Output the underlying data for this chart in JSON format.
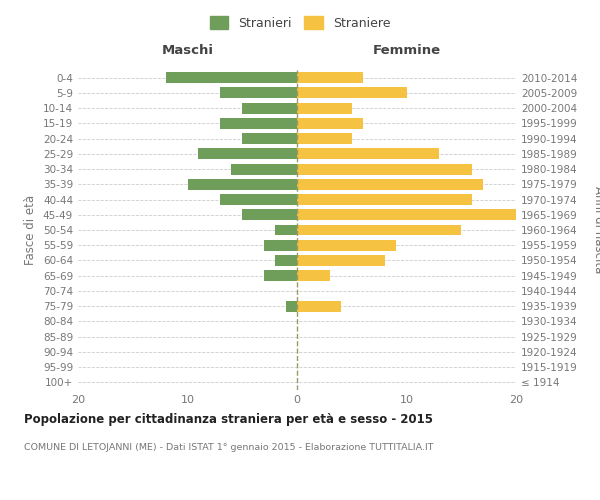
{
  "age_groups": [
    "100+",
    "95-99",
    "90-94",
    "85-89",
    "80-84",
    "75-79",
    "70-74",
    "65-69",
    "60-64",
    "55-59",
    "50-54",
    "45-49",
    "40-44",
    "35-39",
    "30-34",
    "25-29",
    "20-24",
    "15-19",
    "10-14",
    "5-9",
    "0-4"
  ],
  "birth_years": [
    "≤ 1914",
    "1915-1919",
    "1920-1924",
    "1925-1929",
    "1930-1934",
    "1935-1939",
    "1940-1944",
    "1945-1949",
    "1950-1954",
    "1955-1959",
    "1960-1964",
    "1965-1969",
    "1970-1974",
    "1975-1979",
    "1980-1984",
    "1985-1989",
    "1990-1994",
    "1995-1999",
    "2000-2004",
    "2005-2009",
    "2010-2014"
  ],
  "maschi": [
    0,
    0,
    0,
    0,
    0,
    1,
    0,
    3,
    2,
    3,
    2,
    5,
    7,
    10,
    6,
    9,
    5,
    7,
    5,
    7,
    12
  ],
  "femmine": [
    0,
    0,
    0,
    0,
    0,
    4,
    0,
    3,
    8,
    9,
    15,
    20,
    16,
    17,
    16,
    13,
    5,
    6,
    5,
    10,
    6
  ],
  "color_maschi": "#6f9e5b",
  "color_femmine": "#f5c242",
  "bar_height": 0.72,
  "xlim": 20,
  "title": "Popolazione per cittadinanza straniera per età e sesso - 2015",
  "subtitle": "COMUNE DI LETOJANNI (ME) - Dati ISTAT 1° gennaio 2015 - Elaborazione TUTTITALIA.IT",
  "xlabel_left": "Maschi",
  "xlabel_right": "Femmine",
  "ylabel_left": "Fasce di età",
  "ylabel_right": "Anni di nascita",
  "legend_stranieri": "Stranieri",
  "legend_straniere": "Straniere",
  "bg_color": "#ffffff",
  "grid_color": "#cccccc",
  "text_color": "#777777",
  "header_color": "#444444",
  "dashed_line_color": "#999966",
  "title_color": "#222222"
}
